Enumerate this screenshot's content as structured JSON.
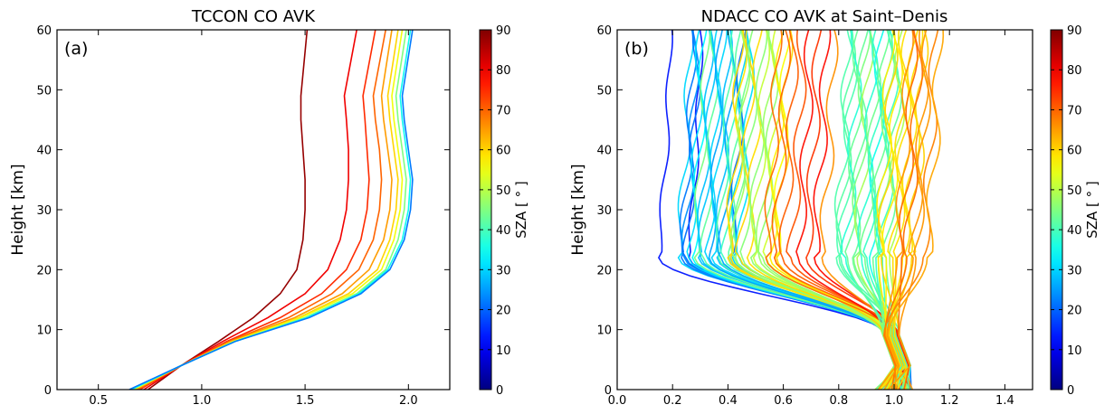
{
  "chart_data": [
    {
      "type": "line",
      "panel_label": "(a)",
      "title": "TCCON CO AVK",
      "xlabel": "",
      "ylabel": "Height [km]",
      "xlim": [
        0.3,
        2.2
      ],
      "ylim": [
        0,
        60
      ],
      "xticks": [
        "0.5",
        "1.0",
        "1.5",
        "2.0"
      ],
      "yticks": [
        "0",
        "10",
        "20",
        "30",
        "40",
        "50",
        "60"
      ],
      "colorbar": {
        "label": "SZA [$^\\circ$]",
        "label_text": "SZA [ ° ]",
        "range": [
          0,
          90
        ],
        "ticks": [
          "0",
          "10",
          "20",
          "30",
          "40",
          "50",
          "60",
          "70",
          "80",
          "90"
        ]
      },
      "series": [
        {
          "sza": 88,
          "points": [
            [
              0.74,
              0
            ],
            [
              0.9,
              4
            ],
            [
              1.08,
              8
            ],
            [
              1.25,
              12
            ],
            [
              1.38,
              16
            ],
            [
              1.46,
              20
            ],
            [
              1.49,
              25
            ],
            [
              1.5,
              30
            ],
            [
              1.5,
              35
            ],
            [
              1.49,
              40
            ],
            [
              1.48,
              45
            ],
            [
              1.48,
              49
            ],
            [
              1.51,
              60
            ]
          ]
        },
        {
          "sza": 80,
          "points": [
            [
              0.72,
              0
            ],
            [
              0.9,
              4
            ],
            [
              1.1,
              8
            ],
            [
              1.32,
              12
            ],
            [
              1.5,
              16
            ],
            [
              1.61,
              20
            ],
            [
              1.67,
              25
            ],
            [
              1.7,
              30
            ],
            [
              1.71,
              35
            ],
            [
              1.71,
              40
            ],
            [
              1.7,
              45
            ],
            [
              1.69,
              49
            ],
            [
              1.75,
              60
            ]
          ]
        },
        {
          "sza": 75,
          "points": [
            [
              0.7,
              0
            ],
            [
              0.9,
              4
            ],
            [
              1.12,
              8
            ],
            [
              1.38,
              12
            ],
            [
              1.58,
              16
            ],
            [
              1.7,
              20
            ],
            [
              1.77,
              25
            ],
            [
              1.8,
              30
            ],
            [
              1.81,
              35
            ],
            [
              1.8,
              40
            ],
            [
              1.79,
              45
            ],
            [
              1.78,
              49
            ],
            [
              1.84,
              60
            ]
          ]
        },
        {
          "sza": 70,
          "points": [
            [
              0.69,
              0
            ],
            [
              0.9,
              4
            ],
            [
              1.13,
              8
            ],
            [
              1.42,
              12
            ],
            [
              1.63,
              16
            ],
            [
              1.76,
              20
            ],
            [
              1.83,
              25
            ],
            [
              1.86,
              30
            ],
            [
              1.87,
              35
            ],
            [
              1.86,
              40
            ],
            [
              1.84,
              45
            ],
            [
              1.83,
              49
            ],
            [
              1.89,
              60
            ]
          ]
        },
        {
          "sza": 65,
          "points": [
            [
              0.68,
              0
            ],
            [
              0.9,
              4
            ],
            [
              1.14,
              8
            ],
            [
              1.45,
              12
            ],
            [
              1.68,
              16
            ],
            [
              1.81,
              20
            ],
            [
              1.88,
              25
            ],
            [
              1.91,
              30
            ],
            [
              1.92,
              35
            ],
            [
              1.9,
              40
            ],
            [
              1.88,
              45
            ],
            [
              1.87,
              49
            ],
            [
              1.92,
              60
            ]
          ]
        },
        {
          "sza": 60,
          "points": [
            [
              0.67,
              0
            ],
            [
              0.9,
              4
            ],
            [
              1.15,
              8
            ],
            [
              1.47,
              12
            ],
            [
              1.71,
              16
            ],
            [
              1.85,
              20
            ],
            [
              1.91,
              25
            ],
            [
              1.94,
              30
            ],
            [
              1.95,
              35
            ],
            [
              1.93,
              40
            ],
            [
              1.91,
              45
            ],
            [
              1.9,
              49
            ],
            [
              1.95,
              60
            ]
          ]
        },
        {
          "sza": 55,
          "points": [
            [
              0.67,
              0
            ],
            [
              0.9,
              4
            ],
            [
              1.15,
              8
            ],
            [
              1.48,
              12
            ],
            [
              1.73,
              16
            ],
            [
              1.87,
              20
            ],
            [
              1.93,
              25
            ],
            [
              1.96,
              30
            ],
            [
              1.97,
              35
            ],
            [
              1.95,
              40
            ],
            [
              1.93,
              45
            ],
            [
              1.92,
              49
            ],
            [
              1.97,
              60
            ]
          ]
        },
        {
          "sza": 45,
          "points": [
            [
              0.66,
              0
            ],
            [
              0.9,
              4
            ],
            [
              1.16,
              8
            ],
            [
              1.5,
              12
            ],
            [
              1.75,
              16
            ],
            [
              1.89,
              20
            ],
            [
              1.95,
              25
            ],
            [
              1.98,
              30
            ],
            [
              1.99,
              35
            ],
            [
              1.97,
              40
            ],
            [
              1.95,
              45
            ],
            [
              1.94,
              49
            ],
            [
              1.99,
              60
            ]
          ]
        },
        {
          "sza": 35,
          "points": [
            [
              0.66,
              0
            ],
            [
              0.9,
              4
            ],
            [
              1.16,
              8
            ],
            [
              1.51,
              12
            ],
            [
              1.76,
              16
            ],
            [
              1.9,
              20
            ],
            [
              1.97,
              25
            ],
            [
              2.0,
              30
            ],
            [
              2.01,
              35
            ],
            [
              1.99,
              40
            ],
            [
              1.97,
              45
            ],
            [
              1.96,
              49
            ],
            [
              2.01,
              60
            ]
          ]
        },
        {
          "sza": 22,
          "points": [
            [
              0.65,
              0
            ],
            [
              0.9,
              4
            ],
            [
              1.16,
              8
            ],
            [
              1.52,
              12
            ],
            [
              1.77,
              16
            ],
            [
              1.91,
              20
            ],
            [
              1.98,
              25
            ],
            [
              2.01,
              30
            ],
            [
              2.02,
              35
            ],
            [
              2.0,
              40
            ],
            [
              1.98,
              45
            ],
            [
              1.97,
              49
            ],
            [
              2.02,
              60
            ]
          ]
        }
      ]
    },
    {
      "type": "line",
      "panel_label": "(b)",
      "title": "NDACC CO AVK at Saint–Denis",
      "xlabel": "",
      "ylabel": "Height [km]",
      "xlim": [
        0.0,
        1.5
      ],
      "ylim": [
        0,
        60
      ],
      "xticks": [
        "0.0",
        "0.2",
        "0.4",
        "0.6",
        "0.8",
        "1.0",
        "1.2",
        "1.4"
      ],
      "yticks": [
        "0",
        "10",
        "20",
        "30",
        "40",
        "50",
        "60"
      ],
      "colorbar": {
        "label": "SZA [$^\\circ$]",
        "label_text": "SZA [ ° ]",
        "range": [
          0,
          90
        ],
        "ticks": [
          "0",
          "10",
          "20",
          "30",
          "40",
          "50",
          "60",
          "70",
          "80",
          "90"
        ]
      },
      "groups": [
        {
          "count": 2,
          "sza": [
            12,
            14
          ],
          "top": [
            0.19,
            0.3
          ],
          "range": [
            0.17,
            0.32
          ],
          "wiggle": 0.01
        },
        {
          "count": 22,
          "sza": [
            20,
            45
          ],
          "top": [
            0.26,
            0.48
          ],
          "range": [
            0.24,
            0.5
          ],
          "wiggle": 0.015
        },
        {
          "count": 14,
          "sza": [
            45,
            62
          ],
          "top": [
            0.44,
            0.62
          ],
          "range": [
            0.42,
            0.64
          ],
          "wiggle": 0.018
        },
        {
          "count": 8,
          "sza": [
            65,
            78
          ],
          "top": [
            0.58,
            0.78
          ],
          "range": [
            0.55,
            0.8
          ],
          "wiggle": 0.018
        },
        {
          "count": 18,
          "sza": [
            35,
            50
          ],
          "top": [
            0.83,
            1.02
          ],
          "range": [
            0.8,
            1.04
          ],
          "wiggle": 0.02
        },
        {
          "count": 8,
          "sza": [
            55,
            62
          ],
          "top": [
            0.98,
            1.1
          ],
          "range": [
            0.96,
            1.12
          ],
          "wiggle": 0.02
        },
        {
          "count": 7,
          "sza": [
            63,
            70
          ],
          "top": [
            1.05,
            1.16
          ],
          "range": [
            1.04,
            1.18
          ],
          "wiggle": 0.018
        }
      ]
    }
  ]
}
